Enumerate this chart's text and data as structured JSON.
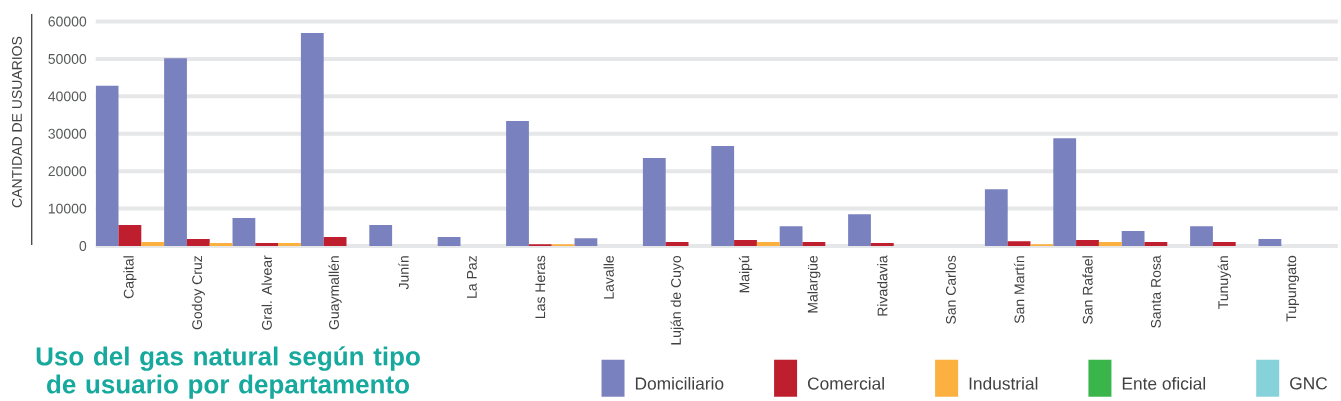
{
  "chart_data": {
    "type": "bar",
    "title": "Uso del gas natural según tipo de usuario por departamento",
    "ylabel": "CANTIDAD DE USUARIOS",
    "categories": [
      "Capital",
      "Godoy Cruz",
      "Gral. Alvear",
      "Guaymallén",
      "Junín",
      "La Paz",
      "Las Heras",
      "Lavalle",
      "Luján de Cuyo",
      "Maipú",
      "Malargüe",
      "Rivadavia",
      "San Carlos",
      "San Martín",
      "San Rafael",
      "Santa Rosa",
      "Tunuyán",
      "Tupungato"
    ],
    "series": [
      {
        "name": "Domiciliario",
        "color": "#7a81bf",
        "values": [
          42800,
          50200,
          7500,
          56900,
          5600,
          2400,
          33400,
          2100,
          23500,
          26700,
          5300,
          8500,
          null,
          15200,
          28800,
          4000,
          5300,
          1900
        ]
      },
      {
        "name": "Comercial",
        "color": "#be1e2d",
        "values": [
          5600,
          1900,
          800,
          2400,
          null,
          null,
          500,
          null,
          1100,
          1600,
          1100,
          800,
          null,
          1300,
          1600,
          1100,
          1100,
          null
        ]
      },
      {
        "name": "Industrial",
        "color": "#fbb040",
        "values": [
          1100,
          800,
          800,
          null,
          null,
          null,
          500,
          null,
          null,
          1100,
          null,
          null,
          null,
          500,
          1100,
          null,
          null,
          null
        ]
      },
      {
        "name": "Ente oficial",
        "color": "#39b54a",
        "values": [
          null,
          null,
          null,
          null,
          null,
          null,
          null,
          null,
          null,
          null,
          null,
          null,
          null,
          null,
          null,
          null,
          null,
          null
        ]
      },
      {
        "name": "GNC",
        "color": "#86d2da",
        "values": [
          null,
          null,
          null,
          null,
          null,
          null,
          null,
          null,
          null,
          null,
          null,
          null,
          null,
          null,
          null,
          null,
          null,
          null
        ]
      }
    ],
    "ylim": [
      0,
      60000
    ],
    "yticks": [
      0,
      10000,
      20000,
      30000,
      40000,
      50000,
      60000
    ],
    "grid": "y",
    "legend": "bottom right"
  }
}
